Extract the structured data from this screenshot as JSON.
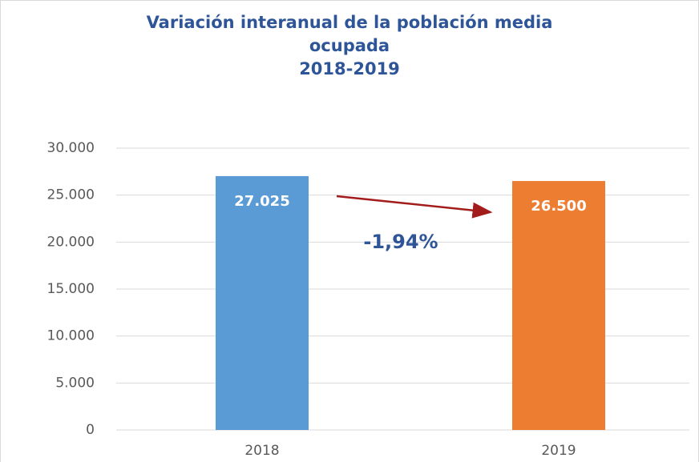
{
  "chart_data": {
    "type": "bar",
    "title": "Variación interanual de la población media ocupada",
    "subtitle": "2018-2019",
    "categories": [
      "2018",
      "2019"
    ],
    "values": [
      27025,
      26500
    ],
    "value_labels": [
      "27.025",
      "26.500"
    ],
    "colors": [
      "#5b9bd5",
      "#ed7d31"
    ],
    "ylim": [
      0,
      30000
    ],
    "yticks": [
      0,
      {
        "value": 5000,
        "label": "5.000"
      },
      {
        "value": 10000,
        "label": "10.000"
      },
      {
        "value": 15000,
        "label": "15.000"
      },
      {
        "value": 20000,
        "label": "20.000"
      },
      {
        "value": 25000,
        "label": "25.000"
      },
      {
        "value": 30000,
        "label": "30.000"
      }
    ],
    "grid": true,
    "annotation": "-1,94%"
  }
}
